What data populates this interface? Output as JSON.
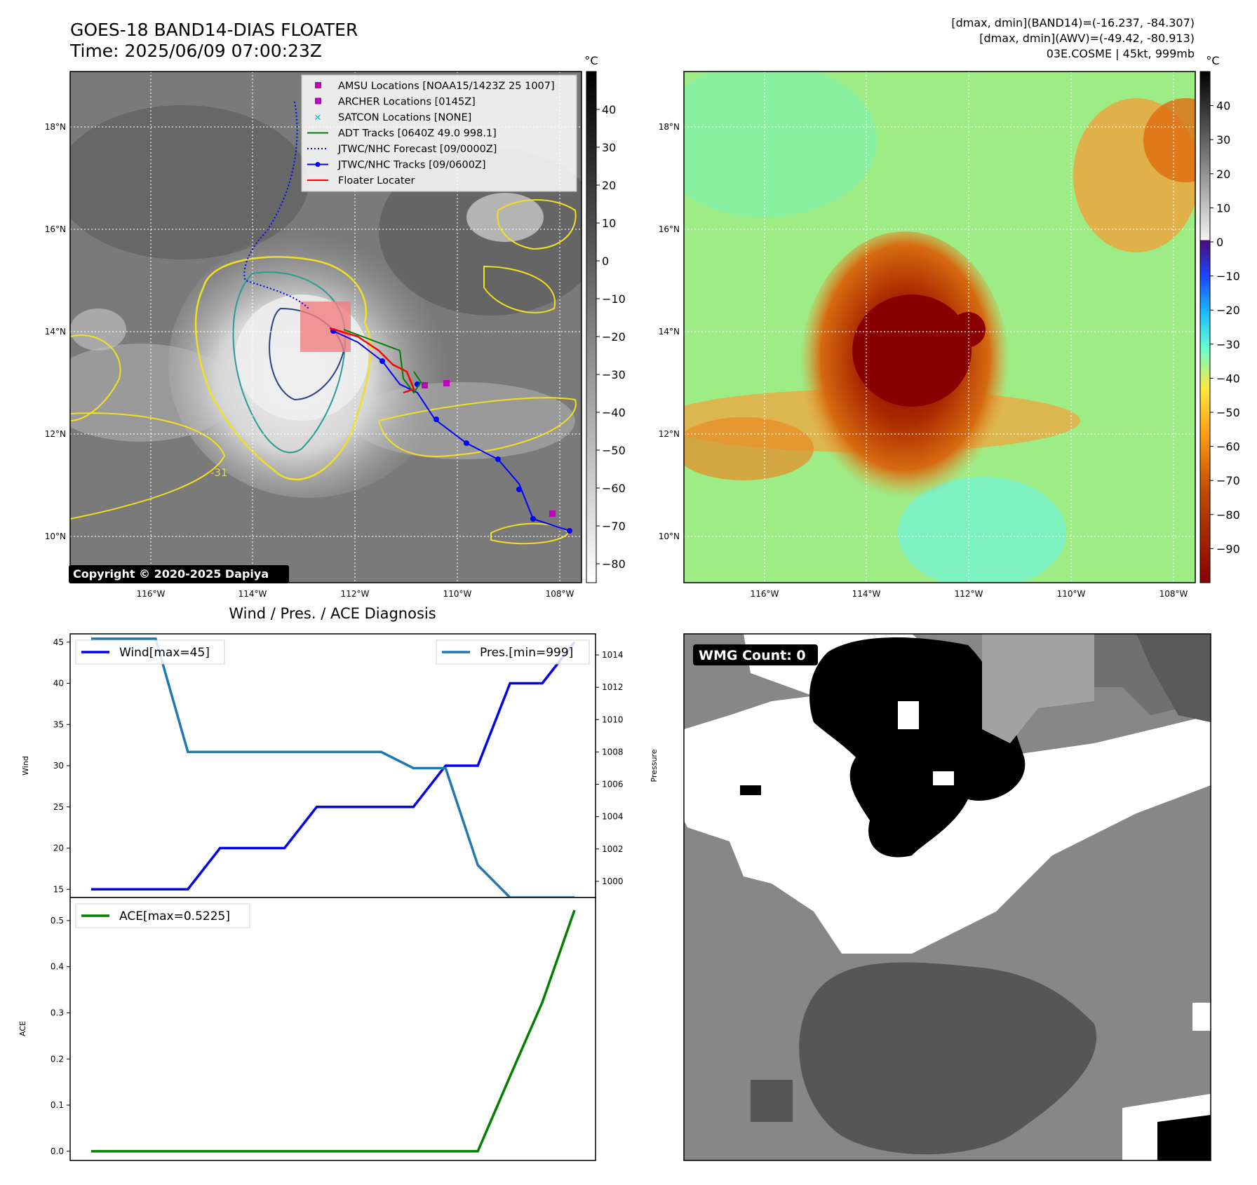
{
  "header": {
    "title_line1": "GOES-18 BAND14-DIAS FLOATER",
    "title_line2": "Time: 2025/06/09 07:00:23Z",
    "stats_line1": "[dmax, dmin](BAND14)=(-16.237, -84.307)",
    "stats_line2": "[dmax, dmin](AWV)=(-49.42, -80.913)",
    "stats_line3": "03E.COSME | 45kt, 999mb"
  },
  "maps": {
    "lon_ticks": [
      "116°W",
      "114°W",
      "112°W",
      "110°W",
      "108°W"
    ],
    "lat_ticks": [
      "18°N",
      "16°N",
      "14°N",
      "12°N",
      "10°N"
    ],
    "copyright": "Copyright © 2020-2025 Dapiya",
    "contour_label": "-31",
    "legend": [
      {
        "label": "AMSU Locations [NOAA15/1423Z 25 1007]",
        "color": "#c000c0",
        "marker": "square"
      },
      {
        "label": "ARCHER Locations [0145Z]",
        "color": "#c000c0",
        "marker": "square"
      },
      {
        "label": "SATCON Locations [NONE]",
        "color": "#20b8b8",
        "marker": "x"
      },
      {
        "label": "ADT Tracks [0640Z 49.0 998.1]",
        "color": "#008000",
        "marker": "line"
      },
      {
        "label": "JTWC/NHC Forecast [09/0000Z]",
        "color": "#0000ff",
        "marker": "dotted"
      },
      {
        "label": "JTWC/NHC Tracks [09/0600Z]",
        "color": "#0000ff",
        "marker": "line-dot"
      },
      {
        "label": "Floater Locater",
        "color": "#ff0000",
        "marker": "line"
      }
    ]
  },
  "colorbars": {
    "unit": "°C",
    "left_ticks": [
      "40",
      "30",
      "20",
      "10",
      "0",
      "−10",
      "−20",
      "−30",
      "−40",
      "−50",
      "−60",
      "−70",
      "−80"
    ],
    "right_ticks": [
      "40",
      "30",
      "20",
      "10",
      "0",
      "−10",
      "−20",
      "−30",
      "−40",
      "−50",
      "−60",
      "−70",
      "−80",
      "−90"
    ]
  },
  "chart_data": [
    {
      "type": "line",
      "title": "Wind / Pres. / ACE Diagnosis",
      "ylabel": "Wind",
      "y2label": "Pressure",
      "ylim": [
        14,
        46
      ],
      "y2lim": [
        999,
        1015.3
      ],
      "yticks": [
        "15",
        "20",
        "25",
        "30",
        "35",
        "40",
        "45"
      ],
      "y2ticks": [
        "1000",
        "1002",
        "1004",
        "1006",
        "1008",
        "1010",
        "1012",
        "1014"
      ],
      "x": [
        0,
        1,
        2,
        3,
        4,
        5,
        6,
        7,
        8,
        9,
        10,
        11,
        12,
        13,
        14,
        15
      ],
      "series": [
        {
          "name": "Wind[max=45]",
          "color": "#0000ee",
          "axis": "left",
          "values": [
            15,
            15,
            15,
            15,
            20,
            20,
            20,
            25,
            25,
            25,
            25,
            30,
            30,
            40,
            40,
            45
          ]
        },
        {
          "name": "Pres.[min=999]",
          "color": "#1f77b4",
          "axis": "right",
          "values": [
            1015,
            1015,
            1015,
            1008,
            1008,
            1008,
            1008,
            1008,
            1008,
            1008,
            1007,
            1007,
            1001,
            999,
            999,
            999
          ]
        }
      ]
    },
    {
      "type": "line",
      "ylabel": "ACE",
      "ylim": [
        -0.02,
        0.55
      ],
      "yticks": [
        "0.0",
        "0.1",
        "0.2",
        "0.3",
        "0.4",
        "0.5"
      ],
      "x": [
        0,
        1,
        2,
        3,
        4,
        5,
        6,
        7,
        8,
        9,
        10,
        11,
        12,
        13,
        14,
        15
      ],
      "series": [
        {
          "name": "ACE[max=0.5225]",
          "color": "#008000",
          "axis": "left",
          "values": [
            0,
            0,
            0,
            0,
            0,
            0,
            0,
            0,
            0,
            0,
            0,
            0,
            0,
            0.1625,
            0.3225,
            0.5225
          ]
        }
      ]
    }
  ],
  "wmg": {
    "label": "WMG Count: 0"
  }
}
